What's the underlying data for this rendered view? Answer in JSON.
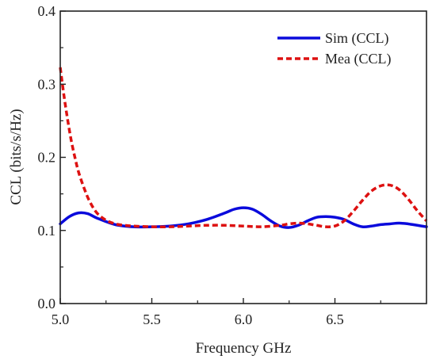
{
  "chart_data": {
    "type": "line",
    "xlabel": "Frequency GHz",
    "ylabel": "CCL (bits/s/Hz)",
    "xlim": [
      5.0,
      7.0
    ],
    "ylim": [
      0.0,
      0.4
    ],
    "xticks": [
      5.0,
      5.5,
      6.0,
      6.5
    ],
    "xtick_labels": [
      "5.0",
      "5.5",
      "6.0",
      "6.5"
    ],
    "yticks": [
      0.0,
      0.1,
      0.2,
      0.3,
      0.4
    ],
    "ytick_labels": [
      "0.0",
      "0.1",
      "0.2",
      "0.3",
      "0.4"
    ],
    "grid": false,
    "legend_position": "top-right",
    "series": [
      {
        "name": "Sim (CCL)",
        "color": "#0a0adc",
        "style": "solid",
        "x": [
          5.0,
          5.05,
          5.1,
          5.15,
          5.2,
          5.3,
          5.4,
          5.5,
          5.6,
          5.7,
          5.8,
          5.9,
          5.95,
          6.0,
          6.05,
          6.1,
          6.15,
          6.2,
          6.25,
          6.3,
          6.35,
          6.4,
          6.45,
          6.5,
          6.55,
          6.6,
          6.65,
          6.7,
          6.75,
          6.8,
          6.85,
          6.9,
          6.95,
          7.0
        ],
        "y": [
          0.109,
          0.119,
          0.124,
          0.123,
          0.117,
          0.108,
          0.105,
          0.105,
          0.106,
          0.109,
          0.115,
          0.124,
          0.129,
          0.131,
          0.129,
          0.122,
          0.113,
          0.106,
          0.104,
          0.107,
          0.113,
          0.118,
          0.119,
          0.118,
          0.115,
          0.109,
          0.105,
          0.106,
          0.108,
          0.109,
          0.11,
          0.109,
          0.107,
          0.105
        ]
      },
      {
        "name": "Mea (CCL)",
        "color": "#dd1111",
        "style": "dashed",
        "x": [
          5.0,
          5.02,
          5.04,
          5.06,
          5.08,
          5.1,
          5.13,
          5.16,
          5.2,
          5.25,
          5.3,
          5.35,
          5.4,
          5.5,
          5.6,
          5.7,
          5.8,
          5.9,
          6.0,
          6.1,
          6.2,
          6.25,
          6.3,
          6.35,
          6.4,
          6.45,
          6.5,
          6.55,
          6.6,
          6.65,
          6.7,
          6.75,
          6.8,
          6.85,
          6.9,
          6.95,
          7.0
        ],
        "y": [
          0.323,
          0.285,
          0.252,
          0.223,
          0.2,
          0.18,
          0.158,
          0.14,
          0.124,
          0.114,
          0.109,
          0.107,
          0.106,
          0.105,
          0.105,
          0.106,
          0.107,
          0.107,
          0.106,
          0.105,
          0.107,
          0.109,
          0.11,
          0.109,
          0.107,
          0.105,
          0.106,
          0.113,
          0.126,
          0.141,
          0.154,
          0.161,
          0.162,
          0.156,
          0.143,
          0.127,
          0.113
        ]
      }
    ]
  }
}
